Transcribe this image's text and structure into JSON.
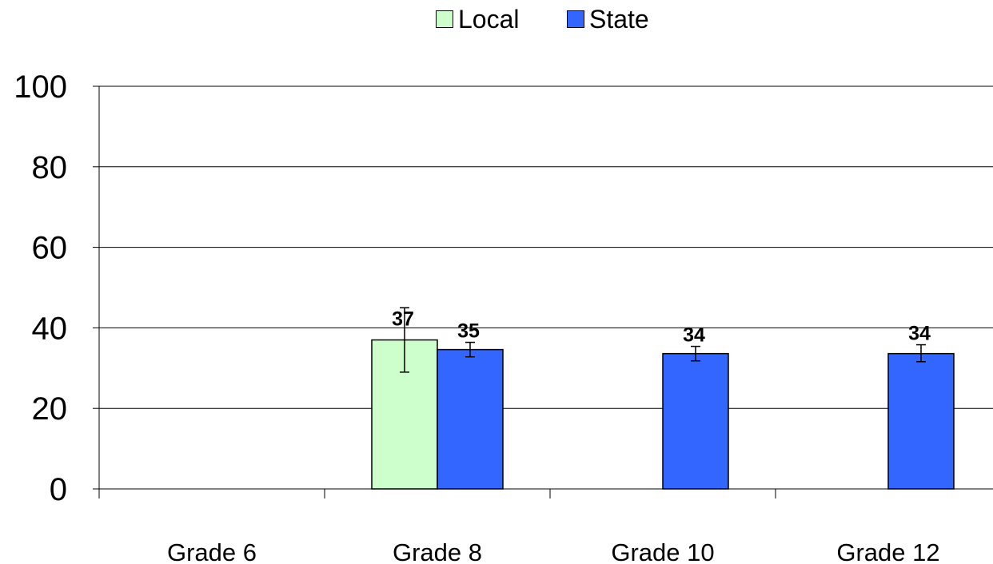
{
  "chart_data": {
    "type": "bar",
    "categories": [
      "Grade 6",
      "Grade 8",
      "Grade 10",
      "Grade 12"
    ],
    "series": [
      {
        "name": "Local",
        "color": "#ccffcc",
        "values": [
          null,
          37,
          null,
          null
        ],
        "error_low": [
          null,
          29,
          null,
          null
        ],
        "error_high": [
          null,
          45,
          null,
          null
        ],
        "labels": [
          "",
          "37",
          "",
          ""
        ]
      },
      {
        "name": "State",
        "color": "#3366ff",
        "values": [
          null,
          34.6,
          33.6,
          33.6
        ],
        "error_low": [
          null,
          32.8,
          31.8,
          31.6
        ],
        "error_high": [
          null,
          36.4,
          35.4,
          35.8
        ],
        "labels": [
          "",
          "35",
          "34",
          "34"
        ]
      }
    ],
    "ylim": [
      0,
      100
    ],
    "yticks": [
      "0",
      "20",
      "40",
      "60",
      "80",
      "100"
    ],
    "grid": true,
    "legend_position": "top-center",
    "xlabel": "",
    "ylabel": ""
  }
}
